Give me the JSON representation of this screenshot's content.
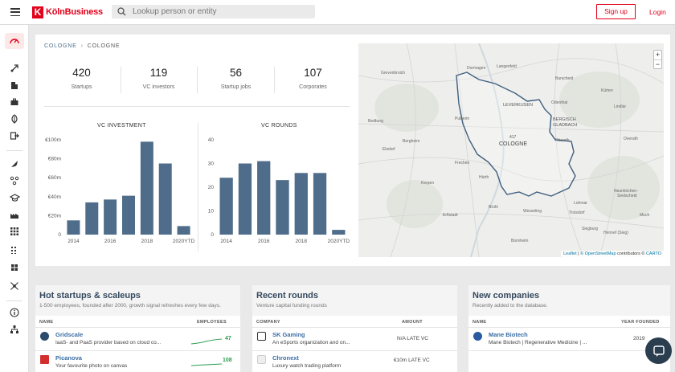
{
  "header": {
    "logo_text": "KölnBusiness",
    "logo_mark": "K",
    "search_placeholder": "Lookup person or entity",
    "signup_label": "Sign up",
    "login_label": "Login"
  },
  "breadcrumb": {
    "root": "COLOGNE",
    "current": "COLOGNE"
  },
  "stats": [
    {
      "value": "420",
      "label": "Startups"
    },
    {
      "value": "119",
      "label": "VC investors"
    },
    {
      "value": "56",
      "label": "Startup jobs"
    },
    {
      "value": "107",
      "label": "Corporates"
    }
  ],
  "chart_data": [
    {
      "type": "bar",
      "title": "VC INVESTMENT",
      "categories": [
        "2014",
        "2015",
        "2016",
        "2017",
        "2018",
        "2019",
        "2020YTD"
      ],
      "tick_labels_x": [
        "2014",
        "2016",
        "2018",
        "2020YTD"
      ],
      "values": [
        15,
        34,
        37,
        41,
        98,
        75,
        9
      ],
      "ylim": [
        0,
        100
      ],
      "yticks": [
        "0",
        "€20m",
        "€40m",
        "€60m",
        "€80m",
        "€100m"
      ],
      "color": "#4f6d8a"
    },
    {
      "type": "bar",
      "title": "VC ROUNDS",
      "categories": [
        "2014",
        "2015",
        "2016",
        "2017",
        "2018",
        "2019",
        "2020YTD"
      ],
      "tick_labels_x": [
        "2014",
        "2016",
        "2018",
        "2020YTD"
      ],
      "values": [
        24,
        30,
        31,
        23,
        26,
        26,
        2
      ],
      "ylim": [
        0,
        40
      ],
      "yticks": [
        "0",
        "10",
        "20",
        "30",
        "40"
      ],
      "color": "#4f6d8a"
    }
  ],
  "map": {
    "zoom_in": "+",
    "zoom_out": "−",
    "center_label": "COLOGNE",
    "highway": "417",
    "places": [
      "Grevenbroich",
      "Dormagen",
      "Langenfeld",
      "Burscheid",
      "LEVERKUSEN",
      "Odenthal",
      "Kürten",
      "Lindlar",
      "BERGISCH GLADBACH",
      "Bedburg",
      "Pulheim",
      "Rösrath",
      "Bergheim",
      "Elsdorf",
      "Frechen",
      "Overath",
      "Kerpen",
      "Hürth",
      "Neunkirchen-Seelscheid",
      "Brühl",
      "Wesseling",
      "Troisdorf",
      "Erftstadt",
      "Siegburg",
      "Hennef (Sieg)",
      "Bornheim",
      "Lohmar",
      "Much"
    ],
    "attribution": {
      "leaflet": "Leaflet",
      "osm": "© OpenStreetMap",
      "contrib": "contributors ©",
      "carto": "CARTO"
    }
  },
  "cards": {
    "hot": {
      "title": "Hot startups & scaleups",
      "subtitle": "1-500 employees, founded after 2000, growth signal refreshes every few days.",
      "col_name": "NAME",
      "col_emp": "EMPLOYEES",
      "rows": [
        {
          "name": "Gridscale",
          "desc": "IaaS- and PaaS provider based on cloud co...",
          "employees": "47"
        },
        {
          "name": "Picanova",
          "desc": "Your favourite photo on canvas",
          "employees": "108"
        }
      ]
    },
    "rounds": {
      "title": "Recent rounds",
      "subtitle": "Venture capital funding rounds",
      "col_company": "COMPANY",
      "col_amount": "AMOUNT",
      "rows": [
        {
          "name": "SK Gaming",
          "desc": "An eSports organization and on...",
          "amount": "N/A LATE VC"
        },
        {
          "name": "Chronext",
          "desc": "Luxury watch trading platform",
          "amount": "€10m LATE VC"
        }
      ]
    },
    "new": {
      "title": "New companies",
      "subtitle": "Recently added to the database.",
      "col_name": "NAME",
      "col_year": "YEAR FOUNDED",
      "rows": [
        {
          "name": "Mane Biotech",
          "desc": "Mane Biotech | Regenerative Medicine | ...",
          "year": "2019"
        }
      ]
    }
  },
  "colors": {
    "brand": "#e2001a",
    "bar": "#4f6d8a",
    "link": "#3a6ea5",
    "positive": "#2e9e4f"
  }
}
